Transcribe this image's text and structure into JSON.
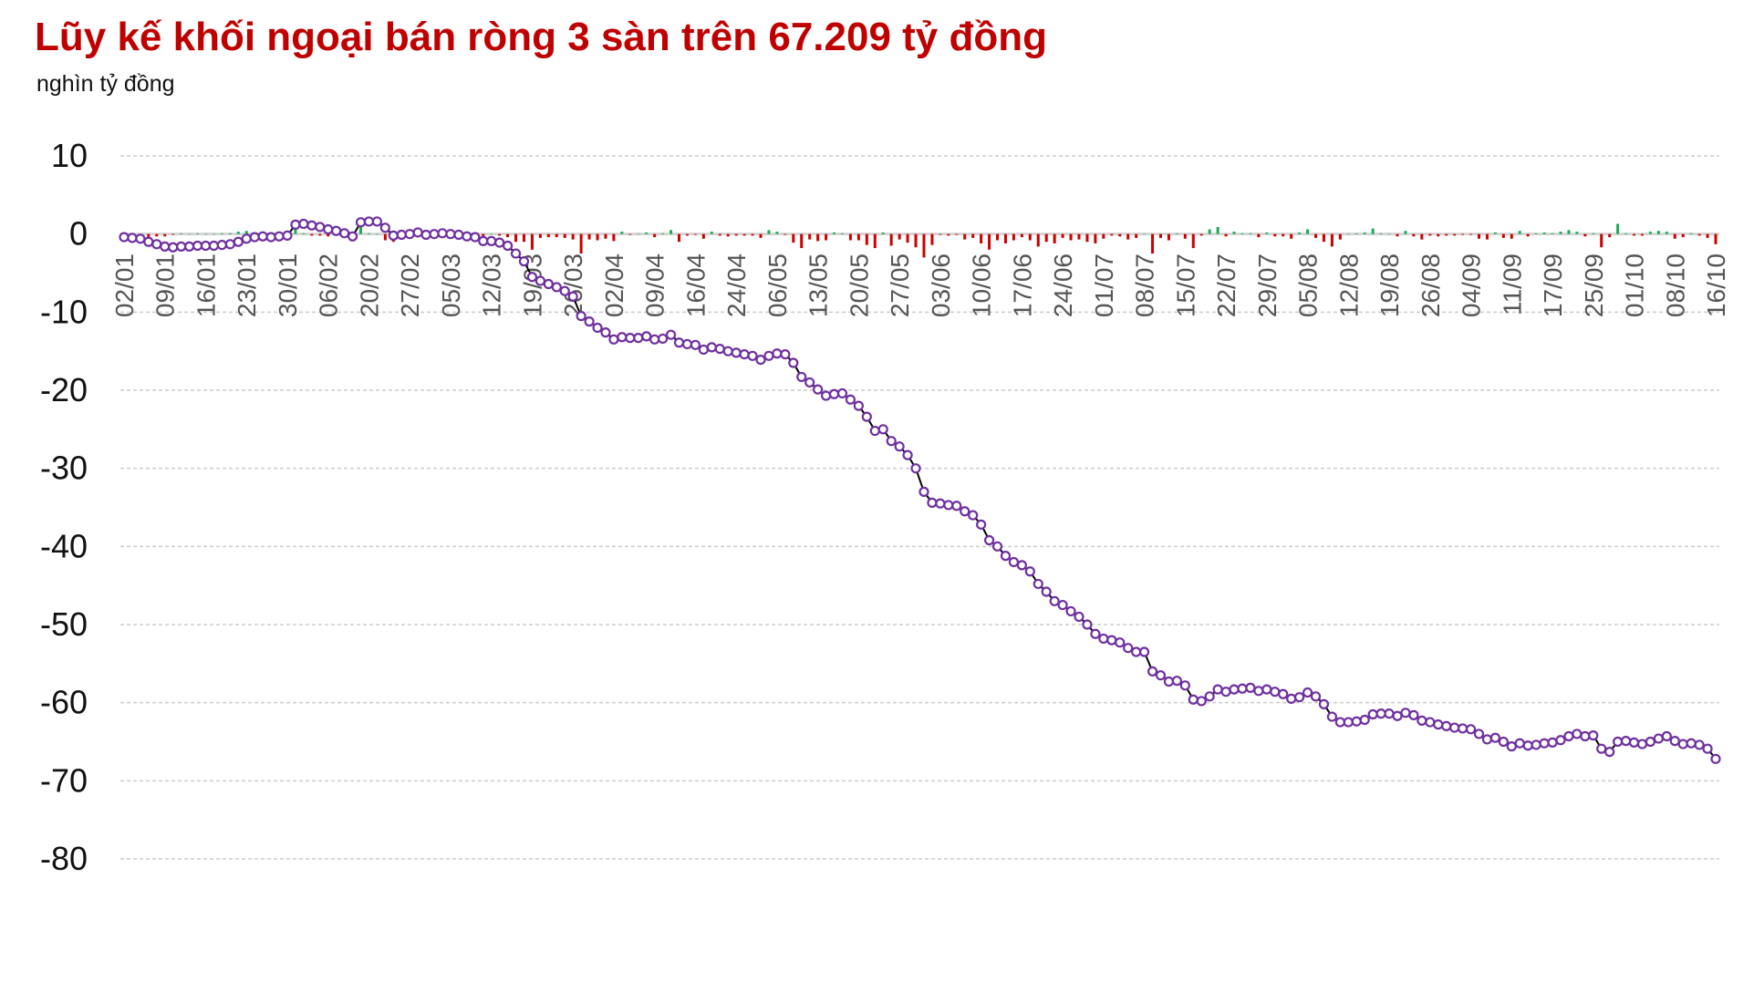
{
  "title": "Lũy kế khối ngoại bán ròng 3 sàn trên 67.209 tỷ đồng",
  "unit_label": "nghìn tỷ đồng",
  "chart_data": {
    "type": "line",
    "title": "Lũy kế khối ngoại bán ròng 3 sàn trên 67.209 tỷ đồng",
    "ylabel": "nghìn tỷ đồng",
    "ylim": [
      -80,
      10
    ],
    "yticks": [
      10,
      0,
      -10,
      -20,
      -30,
      -40,
      -50,
      -60,
      -70,
      -80
    ],
    "grid": true,
    "colors": {
      "line": "#000000",
      "marker": "#7030a0",
      "buy": "#1aaa55",
      "sell": "#cc0000",
      "title": "#c00000"
    },
    "x_tick_labels": [
      "02/01",
      "09/01",
      "16/01",
      "23/01",
      "30/01",
      "06/02",
      "20/02",
      "27/02",
      "05/03",
      "12/03",
      "19/03",
      "26/03",
      "02/04",
      "09/04",
      "16/04",
      "24/04",
      "06/05",
      "13/05",
      "20/05",
      "27/05",
      "03/06",
      "10/06",
      "17/06",
      "24/06",
      "01/07",
      "08/07",
      "15/07",
      "22/07",
      "29/07",
      "05/08",
      "12/08",
      "19/08",
      "26/08",
      "04/09",
      "11/09",
      "17/09",
      "25/09",
      "01/10",
      "08/10",
      "16/10"
    ],
    "sessions_per_tick": 5,
    "cumulative": [
      -0.4,
      -0.5,
      -0.6,
      -1.0,
      -1.3,
      -1.6,
      -1.7,
      -1.6,
      -1.6,
      -1.5,
      -1.5,
      -1.5,
      -1.4,
      -1.3,
      -1.0,
      -0.6,
      -0.4,
      -0.3,
      -0.4,
      -0.3,
      -0.2,
      1.2,
      1.3,
      1.1,
      0.9,
      0.6,
      0.4,
      0.1,
      -0.3,
      1.5,
      1.6,
      1.6,
      0.8,
      -0.2,
      -0.1,
      0.0,
      0.2,
      -0.1,
      0.0,
      0.1,
      0.0,
      -0.1,
      -0.3,
      -0.4,
      -0.9,
      -0.9,
      -1.1,
      -1.5,
      -2.5,
      -3.5,
      -5.5,
      -6.0,
      -6.4,
      -6.8,
      -7.3,
      -8.0,
      -10.5,
      -11.2,
      -12.0,
      -12.6,
      -13.5,
      -13.2,
      -13.3,
      -13.3,
      -13.1,
      -13.5,
      -13.4,
      -12.9,
      -13.9,
      -14.1,
      -14.2,
      -14.8,
      -14.5,
      -14.7,
      -15.0,
      -15.2,
      -15.4,
      -15.6,
      -16.1,
      -15.6,
      -15.3,
      -15.4,
      -16.5,
      -18.3,
      -19.0,
      -19.9,
      -20.7,
      -20.5,
      -20.4,
      -21.2,
      -22.0,
      -23.4,
      -25.2,
      -25.0,
      -26.5,
      -27.2,
      -28.3,
      -30.0,
      -33.0,
      -34.4,
      -34.5,
      -34.7,
      -34.8,
      -35.5,
      -36.0,
      -37.2,
      -39.2,
      -40.0,
      -41.2,
      -42.0,
      -42.4,
      -43.2,
      -44.8,
      -45.8,
      -47.0,
      -47.5,
      -48.3,
      -49.0,
      -50.0,
      -51.2,
      -51.8,
      -52.0,
      -52.3,
      -53.0,
      -53.5,
      -53.5,
      -56.0,
      -56.5,
      -57.3,
      -57.2,
      -57.8,
      -59.6,
      -59.8,
      -59.2,
      -58.3,
      -58.6,
      -58.3,
      -58.2,
      -58.1,
      -58.5,
      -58.3,
      -58.6,
      -58.9,
      -59.5,
      -59.3,
      -58.7,
      -59.2,
      -60.2,
      -61.8,
      -62.5,
      -62.5,
      -62.4,
      -62.2,
      -61.5,
      -61.4,
      -61.4,
      -61.7,
      -61.3,
      -61.6,
      -62.3,
      -62.5,
      -62.8,
      -63.0,
      -63.2,
      -63.3,
      -63.4,
      -64.0,
      -64.7,
      -64.5,
      -65.0,
      -65.6,
      -65.2,
      -65.5,
      -65.4,
      -65.2,
      -65.1,
      -64.8,
      -64.3,
      -64.0,
      -64.3,
      -64.2,
      -65.9,
      -66.3,
      -65.0,
      -64.9,
      -65.1,
      -65.3,
      -65.0,
      -64.6,
      -64.3,
      -64.9,
      -65.3,
      -65.2,
      -65.4,
      -65.9,
      -67.2
    ]
  }
}
